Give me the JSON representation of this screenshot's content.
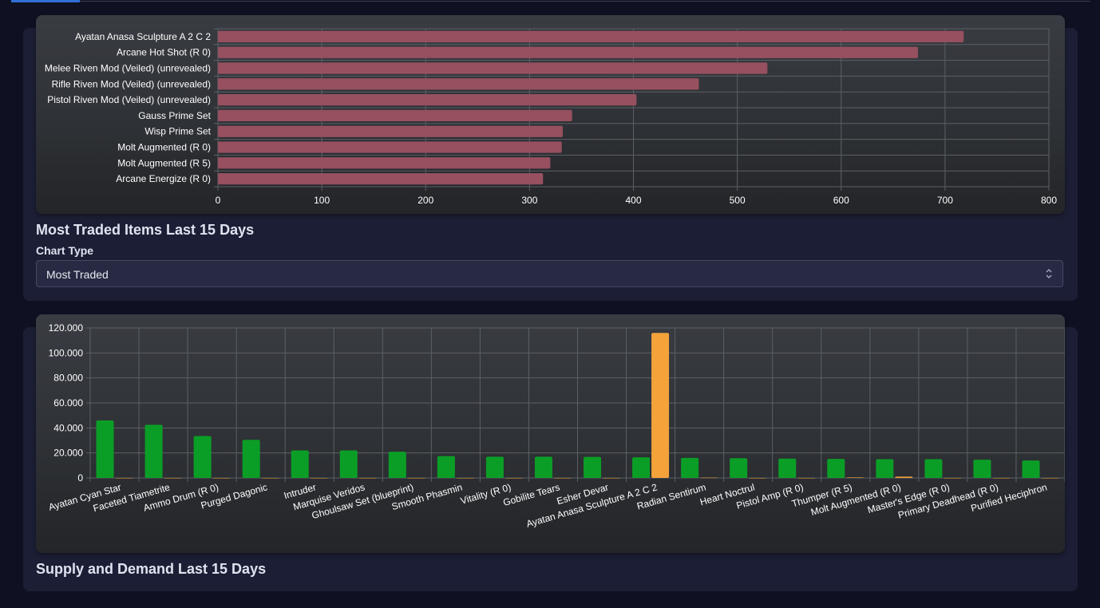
{
  "icons": {
    "select_arrows": "chevron-up-down-icon"
  },
  "colors": {
    "bar_traded": "#96505f",
    "bar_supply": "#0b9e26",
    "bar_demand": "#f3a33a",
    "grid": "#5c6066",
    "tick_text": "#ffffff"
  },
  "section1": {
    "title": "Most Traded Items Last 15 Days",
    "chart_type_label": "Chart Type",
    "chart_type_value": "Most Traded"
  },
  "section2": {
    "title": "Supply and Demand Last 15 Days"
  },
  "chart_data": [
    {
      "type": "bar",
      "orientation": "horizontal",
      "categories": [
        "Ayatan Anasa Sculpture A 2 C 2",
        "Arcane Hot Shot (R 0)",
        "Melee Riven Mod (Veiled) (unrevealed)",
        "Rifle Riven Mod (Veiled) (unrevealed)",
        "Pistol Riven Mod (Veiled) (unrevealed)",
        "Gauss Prime Set",
        "Wisp Prime Set",
        "Molt Augmented (R 0)",
        "Molt Augmented (R 5)",
        "Arcane Energize (R 0)"
      ],
      "values": [
        718,
        674,
        529,
        463,
        403,
        341,
        332,
        331,
        320,
        313
      ],
      "xlim": [
        0,
        800
      ],
      "xticks": [
        "0",
        "100",
        "200",
        "300",
        "400",
        "500",
        "600",
        "700",
        "800"
      ],
      "grid": true,
      "legend": "none"
    },
    {
      "type": "bar",
      "orientation": "vertical",
      "categories": [
        "Ayatan Cyan Star",
        "Faceted Tiametrite",
        "Ammo Drum (R 0)",
        "Purged Dagonic",
        "Intruder",
        "Marquise Veridos",
        "Ghoulsaw Set (blueprint)",
        "Smooth Phasmin",
        "Vitality (R 0)",
        "Gobilite Tears",
        "Esher Devar",
        "Ayatan Anasa Sculpture A 2 C 2",
        "Radian Sentirum",
        "Heart Noctrul",
        "Pistol Amp (R 0)",
        "Thumper (R 5)",
        "Molt Augmented (R 0)",
        "Master's Edge (R 0)",
        "Primary Deadhead (R 0)",
        "Purified Heciphron"
      ],
      "series": [
        {
          "values": [
            46000,
            42500,
            33500,
            30500,
            22000,
            22000,
            21000,
            17500,
            17000,
            17000,
            16800,
            16500,
            16000,
            15800,
            15500,
            15200,
            15000,
            15000,
            14600,
            14000
          ]
        },
        {
          "values": [
            0,
            0,
            0,
            0,
            0,
            0,
            0,
            0,
            0,
            0,
            0,
            116000,
            200,
            0,
            0,
            400,
            1000,
            0,
            0,
            0
          ]
        }
      ],
      "ylim": [
        0,
        120000
      ],
      "yticks": [
        "0",
        "20.000",
        "40.000",
        "60.000",
        "80.000",
        "100.000",
        "120.000"
      ],
      "grid": true,
      "legend": "none"
    }
  ]
}
